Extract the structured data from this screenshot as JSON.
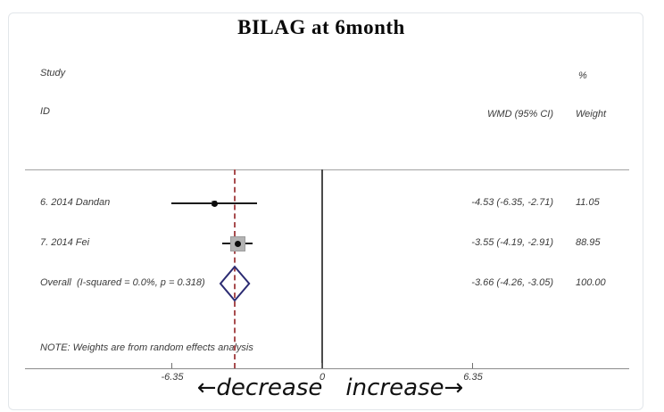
{
  "title": "BILAG at 6month",
  "header": {
    "study": "Study",
    "id": "ID",
    "percent": "%",
    "wmd": "WMD (95% CI)",
    "weight": "Weight"
  },
  "note": "NOTE: Weights are from random effects analysis",
  "footer": {
    "decrease_label": "←decrease",
    "increase_label": "increase→"
  },
  "axis": {
    "tick_labels": [
      "-6.35",
      "0",
      "6.35"
    ]
  },
  "colors": {
    "diamond_outline": "#2b2b72",
    "overall_dashed_line": "#a84c4e",
    "weight_box": "#b3b3b3",
    "ci_line": "#1b1b1b",
    "axis_line": "#8c8c8c"
  },
  "chart_data": {
    "type": "forest",
    "title": "BILAG at 6month",
    "effect_measure": "WMD (95% CI)",
    "model": "random effects",
    "x_ticks": [
      -6.35,
      0,
      6.35
    ],
    "xlim": [
      -6.35,
      6.35
    ],
    "zero_line": 0,
    "overall_line_at": -3.66,
    "direction_labels": {
      "left": "decrease",
      "right": "increase"
    },
    "studies": [
      {
        "id": "6. 2014 Dandan",
        "est": -4.53,
        "ci_low": -6.35,
        "ci_high": -2.71,
        "weight_pct": 11.05,
        "wmd_text": "-4.53 (-6.35, -2.71)",
        "weight_text": "11.05"
      },
      {
        "id": "7. 2014 Fei",
        "est": -3.55,
        "ci_low": -4.19,
        "ci_high": -2.91,
        "weight_pct": 88.95,
        "wmd_text": "-3.55 (-4.19, -2.91)",
        "weight_text": "88.95"
      }
    ],
    "overall": {
      "label": "Overall  (I-squared = 0.0%, p = 0.318)",
      "est": -3.66,
      "ci_low": -4.26,
      "ci_high": -3.05,
      "weight_pct": 100.0,
      "wmd_text": "-3.66 (-4.26, -3.05)",
      "weight_text": "100.00"
    },
    "heterogeneity": {
      "i_squared_pct": 0.0,
      "p": 0.318
    },
    "note": "NOTE: Weights are from random effects analysis"
  }
}
